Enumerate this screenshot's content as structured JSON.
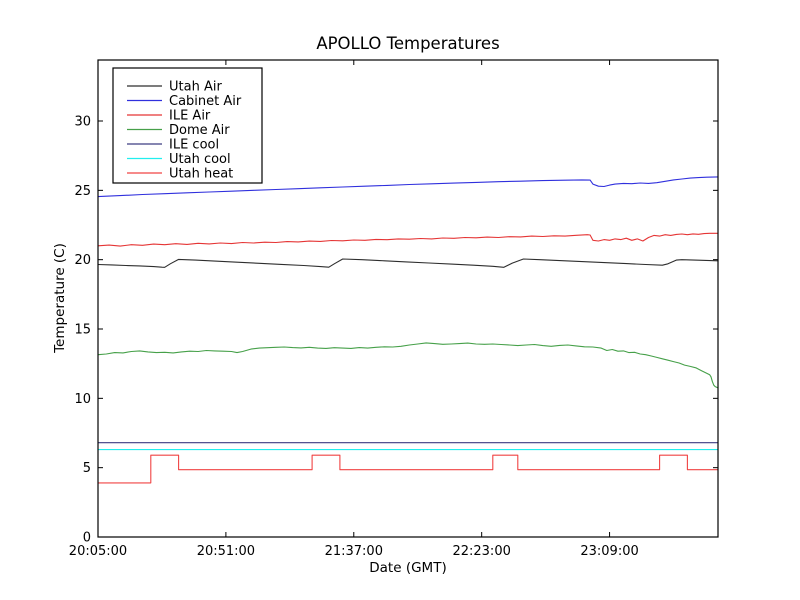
{
  "figure": {
    "background": "#ffffff",
    "frame_color": "#000000"
  },
  "chart_data": {
    "type": "line",
    "title": "APOLLO Temperatures",
    "xlabel": "Date (GMT)",
    "ylabel": "Temperature (C)",
    "grid": false,
    "x_axis": {
      "unit": "minutes after 20:05:00 GMT",
      "range": [
        0,
        223
      ],
      "tick_positions": [
        0,
        46,
        92,
        138,
        184
      ],
      "tick_labels": [
        "20:05:00",
        "20:51:00",
        "21:37:00",
        "22:23:00",
        "23:09:00"
      ]
    },
    "y_axis": {
      "range": [
        0,
        34.4
      ],
      "tick_positions": [
        0,
        5,
        10,
        15,
        20,
        25,
        30
      ],
      "tick_labels": [
        "0",
        "5",
        "10",
        "15",
        "20",
        "25",
        "30"
      ]
    },
    "legend": {
      "position": "upper-left",
      "entries": [
        "Utah Air",
        "Cabinet Air",
        "ILE Air",
        "Dome Air",
        "ILE cool",
        "Utah cool",
        "Utah heat"
      ]
    },
    "series": [
      {
        "name": "Utah Air",
        "color": "#2e2e2e",
        "points": [
          [
            0,
            19.65
          ],
          [
            5,
            19.62
          ],
          [
            10,
            19.58
          ],
          [
            15,
            19.55
          ],
          [
            20,
            19.5
          ],
          [
            23,
            19.46
          ],
          [
            24,
            19.45
          ],
          [
            26,
            19.7
          ],
          [
            29,
            20.02
          ],
          [
            35,
            19.97
          ],
          [
            42,
            19.9
          ],
          [
            50,
            19.82
          ],
          [
            58,
            19.74
          ],
          [
            66,
            19.66
          ],
          [
            74,
            19.58
          ],
          [
            80,
            19.5
          ],
          [
            83,
            19.46
          ],
          [
            85,
            19.7
          ],
          [
            88,
            20.05
          ],
          [
            95,
            20.0
          ],
          [
            103,
            19.92
          ],
          [
            111,
            19.84
          ],
          [
            119,
            19.76
          ],
          [
            127,
            19.68
          ],
          [
            135,
            19.6
          ],
          [
            142,
            19.52
          ],
          [
            146,
            19.45
          ],
          [
            149,
            19.75
          ],
          [
            153,
            20.05
          ],
          [
            159,
            20.0
          ],
          [
            166,
            19.93
          ],
          [
            174,
            19.86
          ],
          [
            182,
            19.79
          ],
          [
            190,
            19.72
          ],
          [
            197,
            19.65
          ],
          [
            203,
            19.6
          ],
          [
            205,
            19.7
          ],
          [
            208,
            19.97
          ],
          [
            210,
            20.0
          ],
          [
            216,
            19.96
          ],
          [
            223,
            19.92
          ]
        ]
      },
      {
        "name": "Cabinet Air",
        "color": "#3030dd",
        "points": [
          [
            0,
            24.55
          ],
          [
            8,
            24.62
          ],
          [
            16,
            24.7
          ],
          [
            24,
            24.76
          ],
          [
            32,
            24.82
          ],
          [
            40,
            24.88
          ],
          [
            48,
            24.94
          ],
          [
            56,
            25.0
          ],
          [
            64,
            25.06
          ],
          [
            72,
            25.12
          ],
          [
            80,
            25.18
          ],
          [
            88,
            25.24
          ],
          [
            96,
            25.3
          ],
          [
            104,
            25.36
          ],
          [
            112,
            25.42
          ],
          [
            120,
            25.47
          ],
          [
            128,
            25.52
          ],
          [
            136,
            25.57
          ],
          [
            144,
            25.62
          ],
          [
            152,
            25.66
          ],
          [
            160,
            25.7
          ],
          [
            168,
            25.73
          ],
          [
            174,
            25.75
          ],
          [
            177,
            25.74
          ],
          [
            178,
            25.45
          ],
          [
            180,
            25.3
          ],
          [
            182,
            25.28
          ],
          [
            184,
            25.38
          ],
          [
            186,
            25.45
          ],
          [
            189,
            25.5
          ],
          [
            192,
            25.48
          ],
          [
            195,
            25.53
          ],
          [
            198,
            25.5
          ],
          [
            201,
            25.55
          ],
          [
            204,
            25.65
          ],
          [
            207,
            25.75
          ],
          [
            210,
            25.82
          ],
          [
            213,
            25.88
          ],
          [
            216,
            25.92
          ],
          [
            219,
            25.95
          ],
          [
            223,
            25.97
          ]
        ]
      },
      {
        "name": "ILE Air",
        "color": "#e53535",
        "points": [
          [
            0,
            21.0
          ],
          [
            4,
            21.05
          ],
          [
            8,
            20.98
          ],
          [
            12,
            21.08
          ],
          [
            16,
            21.04
          ],
          [
            20,
            21.12
          ],
          [
            24,
            21.08
          ],
          [
            28,
            21.15
          ],
          [
            32,
            21.1
          ],
          [
            36,
            21.18
          ],
          [
            40,
            21.14
          ],
          [
            44,
            21.2
          ],
          [
            48,
            21.16
          ],
          [
            52,
            21.24
          ],
          [
            56,
            21.2
          ],
          [
            60,
            21.26
          ],
          [
            64,
            21.24
          ],
          [
            68,
            21.3
          ],
          [
            72,
            21.28
          ],
          [
            76,
            21.34
          ],
          [
            80,
            21.32
          ],
          [
            84,
            21.38
          ],
          [
            88,
            21.36
          ],
          [
            92,
            21.42
          ],
          [
            96,
            21.4
          ],
          [
            100,
            21.46
          ],
          [
            104,
            21.44
          ],
          [
            108,
            21.5
          ],
          [
            112,
            21.48
          ],
          [
            116,
            21.53
          ],
          [
            120,
            21.5
          ],
          [
            124,
            21.56
          ],
          [
            128,
            21.54
          ],
          [
            132,
            21.6
          ],
          [
            136,
            21.58
          ],
          [
            140,
            21.63
          ],
          [
            144,
            21.6
          ],
          [
            148,
            21.66
          ],
          [
            152,
            21.64
          ],
          [
            156,
            21.7
          ],
          [
            160,
            21.67
          ],
          [
            164,
            21.72
          ],
          [
            168,
            21.7
          ],
          [
            172,
            21.76
          ],
          [
            176,
            21.8
          ],
          [
            177,
            21.78
          ],
          [
            178,
            21.4
          ],
          [
            180,
            21.35
          ],
          [
            182,
            21.45
          ],
          [
            184,
            21.4
          ],
          [
            186,
            21.5
          ],
          [
            188,
            21.45
          ],
          [
            190,
            21.55
          ],
          [
            192,
            21.4
          ],
          [
            194,
            21.5
          ],
          [
            196,
            21.35
          ],
          [
            198,
            21.6
          ],
          [
            200,
            21.75
          ],
          [
            202,
            21.7
          ],
          [
            204,
            21.8
          ],
          [
            206,
            21.75
          ],
          [
            208,
            21.82
          ],
          [
            210,
            21.85
          ],
          [
            212,
            21.8
          ],
          [
            214,
            21.86
          ],
          [
            216,
            21.83
          ],
          [
            218,
            21.88
          ],
          [
            220,
            21.9
          ],
          [
            223,
            21.9
          ]
        ]
      },
      {
        "name": "Dome Air",
        "color": "#46a049",
        "points": [
          [
            0,
            13.15
          ],
          [
            3,
            13.2
          ],
          [
            6,
            13.3
          ],
          [
            9,
            13.28
          ],
          [
            12,
            13.38
          ],
          [
            15,
            13.42
          ],
          [
            18,
            13.35
          ],
          [
            21,
            13.3
          ],
          [
            24,
            13.32
          ],
          [
            27,
            13.28
          ],
          [
            30,
            13.35
          ],
          [
            33,
            13.4
          ],
          [
            36,
            13.38
          ],
          [
            39,
            13.45
          ],
          [
            42,
            13.42
          ],
          [
            45,
            13.4
          ],
          [
            48,
            13.38
          ],
          [
            50,
            13.3
          ],
          [
            52,
            13.38
          ],
          [
            55,
            13.55
          ],
          [
            58,
            13.62
          ],
          [
            61,
            13.65
          ],
          [
            64,
            13.68
          ],
          [
            67,
            13.7
          ],
          [
            70,
            13.66
          ],
          [
            73,
            13.64
          ],
          [
            76,
            13.68
          ],
          [
            79,
            13.62
          ],
          [
            82,
            13.6
          ],
          [
            85,
            13.65
          ],
          [
            88,
            13.62
          ],
          [
            91,
            13.6
          ],
          [
            94,
            13.66
          ],
          [
            97,
            13.62
          ],
          [
            100,
            13.68
          ],
          [
            103,
            13.72
          ],
          [
            106,
            13.7
          ],
          [
            109,
            13.75
          ],
          [
            112,
            13.85
          ],
          [
            115,
            13.92
          ],
          [
            118,
            14.0
          ],
          [
            121,
            13.95
          ],
          [
            124,
            13.9
          ],
          [
            127,
            13.92
          ],
          [
            130,
            13.95
          ],
          [
            133,
            13.98
          ],
          [
            136,
            13.92
          ],
          [
            139,
            13.9
          ],
          [
            142,
            13.92
          ],
          [
            145,
            13.88
          ],
          [
            148,
            13.85
          ],
          [
            151,
            13.8
          ],
          [
            154,
            13.85
          ],
          [
            157,
            13.88
          ],
          [
            160,
            13.8
          ],
          [
            163,
            13.75
          ],
          [
            166,
            13.82
          ],
          [
            169,
            13.85
          ],
          [
            172,
            13.78
          ],
          [
            175,
            13.72
          ],
          [
            178,
            13.7
          ],
          [
            181,
            13.62
          ],
          [
            183,
            13.45
          ],
          [
            185,
            13.52
          ],
          [
            187,
            13.4
          ],
          [
            189,
            13.42
          ],
          [
            191,
            13.3
          ],
          [
            193,
            13.32
          ],
          [
            195,
            13.2
          ],
          [
            197,
            13.15
          ],
          [
            199,
            13.05
          ],
          [
            201,
            12.95
          ],
          [
            203,
            12.85
          ],
          [
            205,
            12.75
          ],
          [
            207,
            12.65
          ],
          [
            209,
            12.55
          ],
          [
            211,
            12.4
          ],
          [
            213,
            12.3
          ],
          [
            215,
            12.2
          ],
          [
            217,
            12.0
          ],
          [
            218,
            11.9
          ],
          [
            219,
            11.8
          ],
          [
            220,
            11.7
          ],
          [
            220.5,
            11.55
          ],
          [
            221,
            11.2
          ],
          [
            221.5,
            10.95
          ],
          [
            222,
            10.85
          ],
          [
            223,
            10.75
          ]
        ]
      },
      {
        "name": "ILE cool",
        "color": "#3d3d82",
        "points": [
          [
            0,
            6.8
          ],
          [
            223,
            6.8
          ]
        ]
      },
      {
        "name": "Utah cool",
        "color": "#22eeee",
        "points": [
          [
            0,
            6.3
          ],
          [
            223,
            6.3
          ]
        ]
      },
      {
        "name": "Utah heat",
        "color": "#f04343",
        "points": [
          [
            0,
            3.9
          ],
          [
            19,
            3.9
          ],
          [
            19,
            5.9
          ],
          [
            29,
            5.9
          ],
          [
            29,
            4.85
          ],
          [
            77,
            4.85
          ],
          [
            77,
            5.9
          ],
          [
            87,
            5.9
          ],
          [
            87,
            4.85
          ],
          [
            142,
            4.85
          ],
          [
            142,
            5.9
          ],
          [
            151,
            5.9
          ],
          [
            151,
            4.85
          ],
          [
            202,
            4.85
          ],
          [
            202,
            5.9
          ],
          [
            212,
            5.9
          ],
          [
            212,
            4.85
          ],
          [
            223,
            4.85
          ]
        ]
      }
    ]
  }
}
